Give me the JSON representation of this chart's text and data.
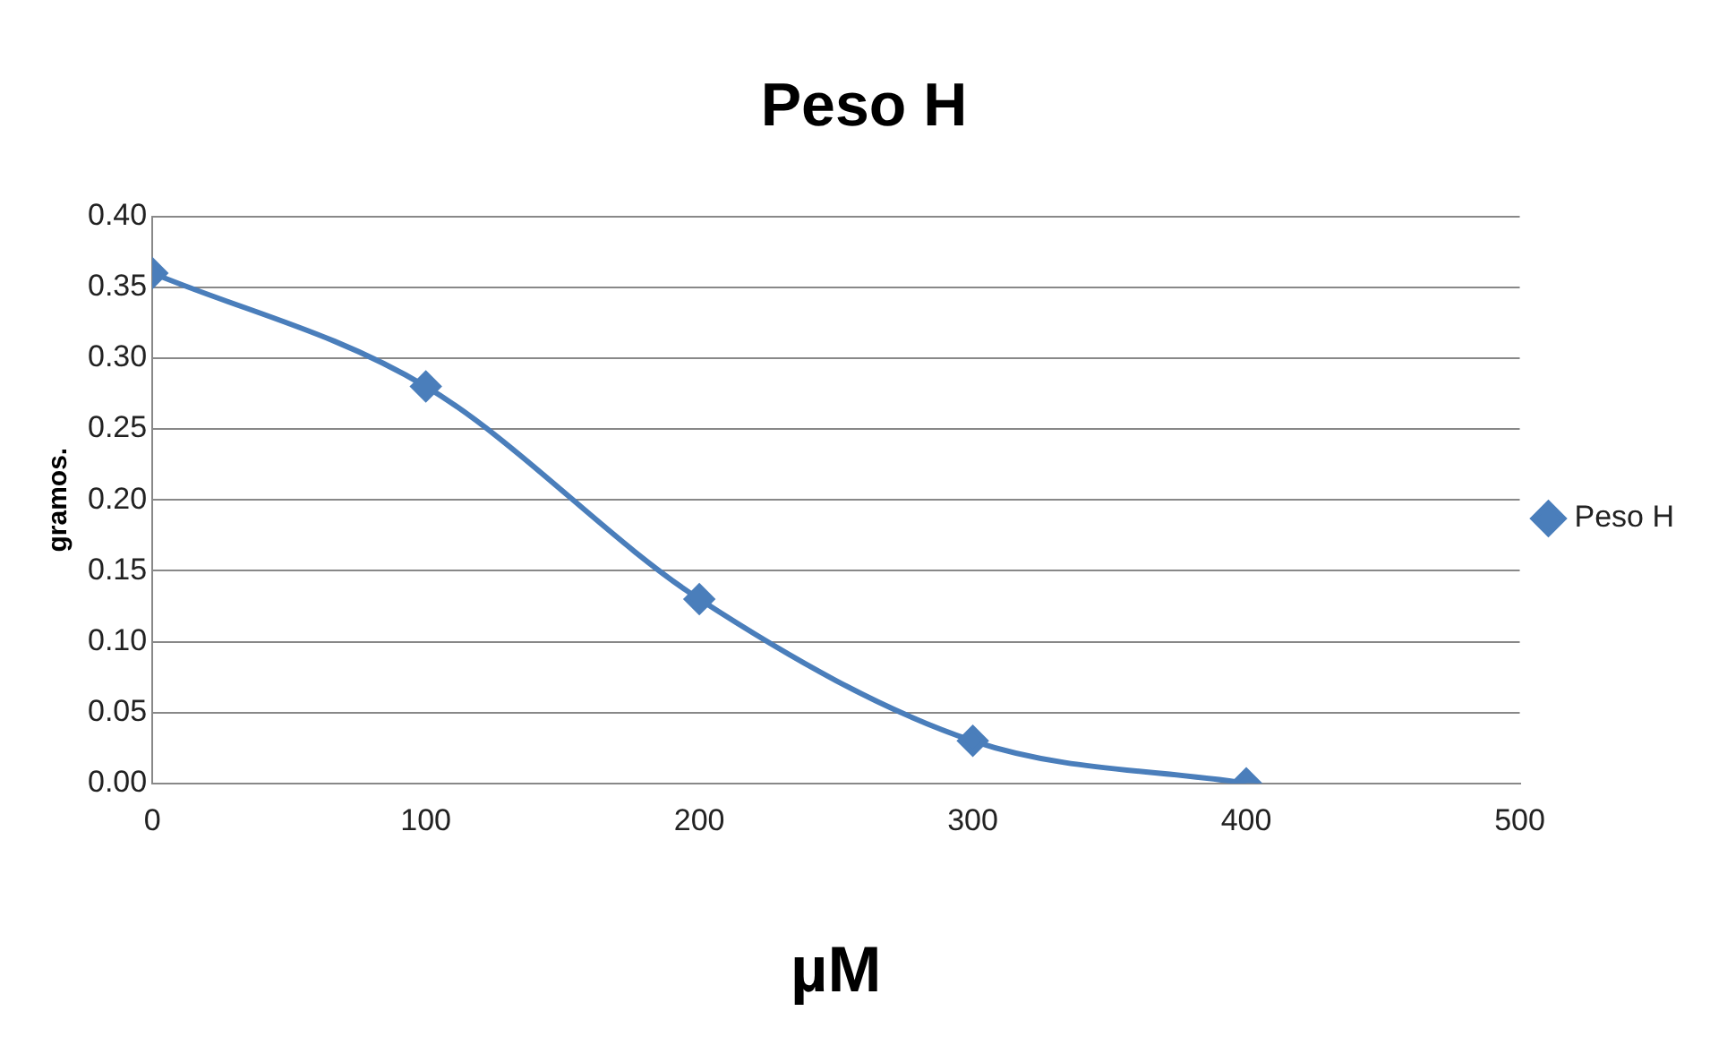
{
  "chart_data": {
    "type": "line",
    "title": "Peso H",
    "xlabel": "µM",
    "ylabel": "gramos.",
    "x": [
      0,
      100,
      200,
      300,
      400
    ],
    "series": [
      {
        "name": "Peso H",
        "color": "#4a7ebb",
        "values": [
          0.36,
          0.28,
          0.13,
          0.03,
          0.0
        ]
      }
    ],
    "xlim": [
      0,
      500
    ],
    "xticks": [
      0,
      100,
      200,
      300,
      400,
      500
    ],
    "ylim": [
      0,
      0.4
    ],
    "yticks": [
      {
        "value": 0,
        "label": "0.00"
      },
      {
        "value": 0.05,
        "label": "0.05"
      },
      {
        "value": 0.1,
        "label": "0.10"
      },
      {
        "value": 0.15,
        "label": "0.15"
      },
      {
        "value": 0.2,
        "label": "0.20"
      },
      {
        "value": 0.25,
        "label": "0.25"
      },
      {
        "value": 0.3,
        "label": "0.30"
      },
      {
        "value": 0.35,
        "label": "0.35"
      },
      {
        "value": 0.4,
        "label": "0.40"
      }
    ],
    "grid": "y",
    "legend": "right",
    "marker": "diamond",
    "line_style": "solid"
  }
}
